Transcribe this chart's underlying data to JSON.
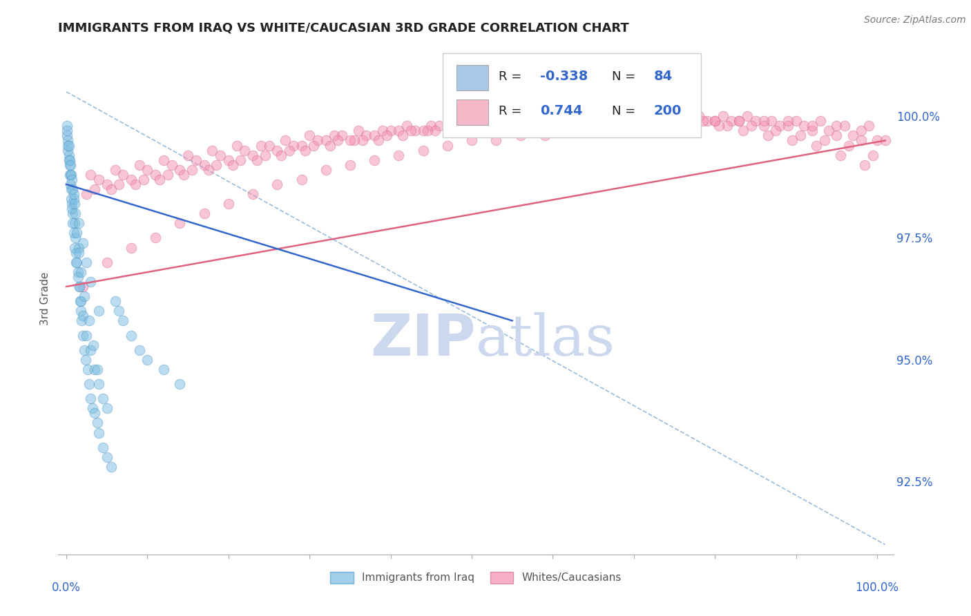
{
  "title": "IMMIGRANTS FROM IRAQ VS WHITE/CAUCASIAN 3RD GRADE CORRELATION CHART",
  "source_text": "Source: ZipAtlas.com",
  "ylabel": "3rd Grade",
  "y_tick_values": [
    92.5,
    95.0,
    97.5,
    100.0
  ],
  "ylim": [
    91.0,
    101.5
  ],
  "xlim": [
    -0.01,
    1.02
  ],
  "legend_label_iraq": "Immigrants from Iraq",
  "legend_label_white": "Whites/Caucasians",
  "blue_color": "#7bbde0",
  "pink_color": "#f48fb1",
  "blue_edge": "#5599cc",
  "pink_edge": "#d07090",
  "blue_line_color": "#3366cc",
  "pink_line_color": "#e06080",
  "dashed_line_color": "#99bbdd",
  "title_color": "#222222",
  "tick_color": "#3366cc",
  "watermark_color": "#ccd8ee",
  "blue_legend_fill": "#aac8e8",
  "pink_legend_fill": "#f4b8c8",
  "iraq_scatter_x": [
    0.001,
    0.002,
    0.003,
    0.004,
    0.005,
    0.006,
    0.007,
    0.008,
    0.009,
    0.01,
    0.011,
    0.012,
    0.013,
    0.014,
    0.015,
    0.016,
    0.017,
    0.018,
    0.019,
    0.02,
    0.022,
    0.024,
    0.026,
    0.028,
    0.03,
    0.032,
    0.035,
    0.038,
    0.04,
    0.045,
    0.05,
    0.055,
    0.06,
    0.065,
    0.07,
    0.08,
    0.09,
    0.1,
    0.12,
    0.14,
    0.001,
    0.002,
    0.003,
    0.004,
    0.005,
    0.006,
    0.007,
    0.008,
    0.009,
    0.01,
    0.012,
    0.014,
    0.016,
    0.018,
    0.02,
    0.025,
    0.03,
    0.035,
    0.04,
    0.05,
    0.002,
    0.004,
    0.006,
    0.008,
    0.01,
    0.015,
    0.02,
    0.025,
    0.03,
    0.04,
    0.001,
    0.003,
    0.005,
    0.007,
    0.009,
    0.011,
    0.013,
    0.015,
    0.018,
    0.022,
    0.028,
    0.033,
    0.038,
    0.045
  ],
  "iraq_scatter_y": [
    99.8,
    99.5,
    99.2,
    99.0,
    98.8,
    98.5,
    98.2,
    98.0,
    98.3,
    97.8,
    97.5,
    97.2,
    97.0,
    96.8,
    97.3,
    96.5,
    96.2,
    96.0,
    95.8,
    95.5,
    95.2,
    95.0,
    94.8,
    94.5,
    94.2,
    94.0,
    93.9,
    93.7,
    93.5,
    93.2,
    93.0,
    92.8,
    96.2,
    96.0,
    95.8,
    95.5,
    95.2,
    95.0,
    94.8,
    94.5,
    99.6,
    99.3,
    99.1,
    98.8,
    98.6,
    98.3,
    98.1,
    97.8,
    97.6,
    97.3,
    97.0,
    96.7,
    96.5,
    96.2,
    95.9,
    95.5,
    95.2,
    94.8,
    94.5,
    94.0,
    99.4,
    99.1,
    98.8,
    98.5,
    98.2,
    97.8,
    97.4,
    97.0,
    96.6,
    96.0,
    99.7,
    99.4,
    99.0,
    98.7,
    98.4,
    98.0,
    97.6,
    97.2,
    96.8,
    96.3,
    95.8,
    95.3,
    94.8,
    94.2
  ],
  "white_scatter_x": [
    0.03,
    0.06,
    0.09,
    0.12,
    0.15,
    0.18,
    0.21,
    0.24,
    0.27,
    0.3,
    0.33,
    0.36,
    0.39,
    0.42,
    0.45,
    0.48,
    0.51,
    0.54,
    0.57,
    0.6,
    0.63,
    0.66,
    0.69,
    0.72,
    0.75,
    0.78,
    0.81,
    0.84,
    0.87,
    0.9,
    0.93,
    0.96,
    0.99,
    0.04,
    0.07,
    0.1,
    0.13,
    0.16,
    0.19,
    0.22,
    0.25,
    0.28,
    0.31,
    0.34,
    0.37,
    0.4,
    0.43,
    0.46,
    0.49,
    0.52,
    0.55,
    0.58,
    0.61,
    0.64,
    0.67,
    0.7,
    0.73,
    0.76,
    0.79,
    0.82,
    0.85,
    0.88,
    0.91,
    0.94,
    0.97,
    1.0,
    0.05,
    0.08,
    0.11,
    0.14,
    0.17,
    0.2,
    0.23,
    0.26,
    0.29,
    0.32,
    0.35,
    0.38,
    0.41,
    0.44,
    0.47,
    0.5,
    0.53,
    0.56,
    0.59,
    0.62,
    0.65,
    0.68,
    0.71,
    0.74,
    0.77,
    0.8,
    0.83,
    0.86,
    0.89,
    0.92,
    0.95,
    0.98,
    0.035,
    0.065,
    0.095,
    0.125,
    0.155,
    0.185,
    0.215,
    0.245,
    0.275,
    0.305,
    0.335,
    0.365,
    0.395,
    0.425,
    0.455,
    0.485,
    0.515,
    0.545,
    0.575,
    0.605,
    0.635,
    0.665,
    0.695,
    0.725,
    0.755,
    0.785,
    0.815,
    0.845,
    0.875,
    0.905,
    0.935,
    0.965,
    0.995,
    0.025,
    0.055,
    0.085,
    0.115,
    0.145,
    0.175,
    0.205,
    0.235,
    0.265,
    0.295,
    0.325,
    0.355,
    0.385,
    0.415,
    0.445,
    0.475,
    0.505,
    0.535,
    0.565,
    0.595,
    0.625,
    0.655,
    0.685,
    0.715,
    0.745,
    0.775,
    0.805,
    0.835,
    0.865,
    0.895,
    0.925,
    0.955,
    0.985,
    0.02,
    0.05,
    0.08,
    0.11,
    0.14,
    0.17,
    0.2,
    0.23,
    0.26,
    0.29,
    0.32,
    0.35,
    0.38,
    0.41,
    0.44,
    0.47,
    0.5,
    0.53,
    0.56,
    0.59,
    0.62,
    0.65,
    0.68,
    0.71,
    0.74,
    0.77,
    0.8,
    0.83,
    0.86,
    0.89,
    0.92,
    0.95,
    0.98,
    1.01
  ],
  "white_scatter_y": [
    98.8,
    98.9,
    99.0,
    99.1,
    99.2,
    99.3,
    99.4,
    99.4,
    99.5,
    99.6,
    99.6,
    99.7,
    99.7,
    99.8,
    99.8,
    99.8,
    99.9,
    99.9,
    99.9,
    99.9,
    100.0,
    100.0,
    100.0,
    100.0,
    100.0,
    100.0,
    100.0,
    100.0,
    99.9,
    99.9,
    99.9,
    99.8,
    99.8,
    98.7,
    98.8,
    98.9,
    99.0,
    99.1,
    99.2,
    99.3,
    99.4,
    99.4,
    99.5,
    99.6,
    99.6,
    99.7,
    99.7,
    99.8,
    99.8,
    99.9,
    99.9,
    99.9,
    99.9,
    100.0,
    100.0,
    100.0,
    100.0,
    100.0,
    99.9,
    99.9,
    99.9,
    99.8,
    99.8,
    99.7,
    99.6,
    99.5,
    98.6,
    98.7,
    98.8,
    98.9,
    99.0,
    99.1,
    99.2,
    99.3,
    99.4,
    99.5,
    99.5,
    99.6,
    99.7,
    99.7,
    99.8,
    99.8,
    99.9,
    99.9,
    99.9,
    99.9,
    100.0,
    100.0,
    100.0,
    100.0,
    99.9,
    99.9,
    99.9,
    99.8,
    99.8,
    99.7,
    99.6,
    99.5,
    98.5,
    98.6,
    98.7,
    98.8,
    98.9,
    99.0,
    99.1,
    99.2,
    99.3,
    99.4,
    99.5,
    99.5,
    99.6,
    99.7,
    99.7,
    99.8,
    99.8,
    99.9,
    99.9,
    99.9,
    100.0,
    100.0,
    100.0,
    100.0,
    99.9,
    99.9,
    99.8,
    99.8,
    99.7,
    99.6,
    99.5,
    99.4,
    99.2,
    98.4,
    98.5,
    98.6,
    98.7,
    98.8,
    98.9,
    99.0,
    99.1,
    99.2,
    99.3,
    99.4,
    99.5,
    99.5,
    99.6,
    99.7,
    99.7,
    99.8,
    99.8,
    99.9,
    99.9,
    99.9,
    100.0,
    100.0,
    100.0,
    99.9,
    99.9,
    99.8,
    99.7,
    99.6,
    99.5,
    99.4,
    99.2,
    99.0,
    96.5,
    97.0,
    97.3,
    97.5,
    97.8,
    98.0,
    98.2,
    98.4,
    98.6,
    98.7,
    98.9,
    99.0,
    99.1,
    99.2,
    99.3,
    99.4,
    99.5,
    99.5,
    99.6,
    99.6,
    99.7,
    99.7,
    99.8,
    99.8,
    99.8,
    99.9,
    99.9,
    99.9,
    99.9,
    99.9,
    99.8,
    99.8,
    99.7,
    99.5
  ],
  "blue_line": {
    "x0": 0.0,
    "x1": 0.55,
    "y0": 98.6,
    "y1": 95.8
  },
  "pink_line": {
    "x0": 0.0,
    "x1": 1.01,
    "y0": 96.5,
    "y1": 99.5
  },
  "dash_line": {
    "x0": 0.0,
    "x1": 1.01,
    "y0": 100.5,
    "y1": 91.2
  }
}
